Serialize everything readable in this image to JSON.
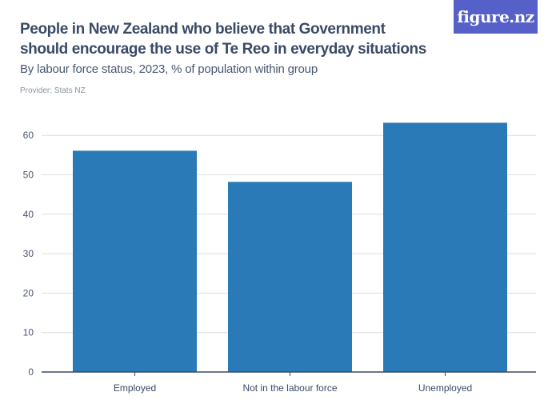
{
  "header": {
    "title": "People in New Zealand who believe that Government should encourage the use of Te Reo in everyday situations",
    "subtitle": "By labour force status, 2023, % of population within group",
    "provider": "Provider: Stats NZ",
    "logo": "figure.nz"
  },
  "chart_data": {
    "type": "bar",
    "title": "People in New Zealand who believe that Government should encourage the use of Te Reo in everyday situations",
    "subtitle": "By labour force status, 2023, % of population within group",
    "categories": [
      "Employed",
      "Not in the labour force",
      "Unemployed"
    ],
    "values": [
      56.1,
      48.2,
      63.2
    ],
    "yticks": [
      0,
      10,
      20,
      30,
      40,
      50,
      60
    ],
    "ylim": [
      0,
      66
    ],
    "grid": true,
    "bar_color": "#2a7ab8"
  }
}
